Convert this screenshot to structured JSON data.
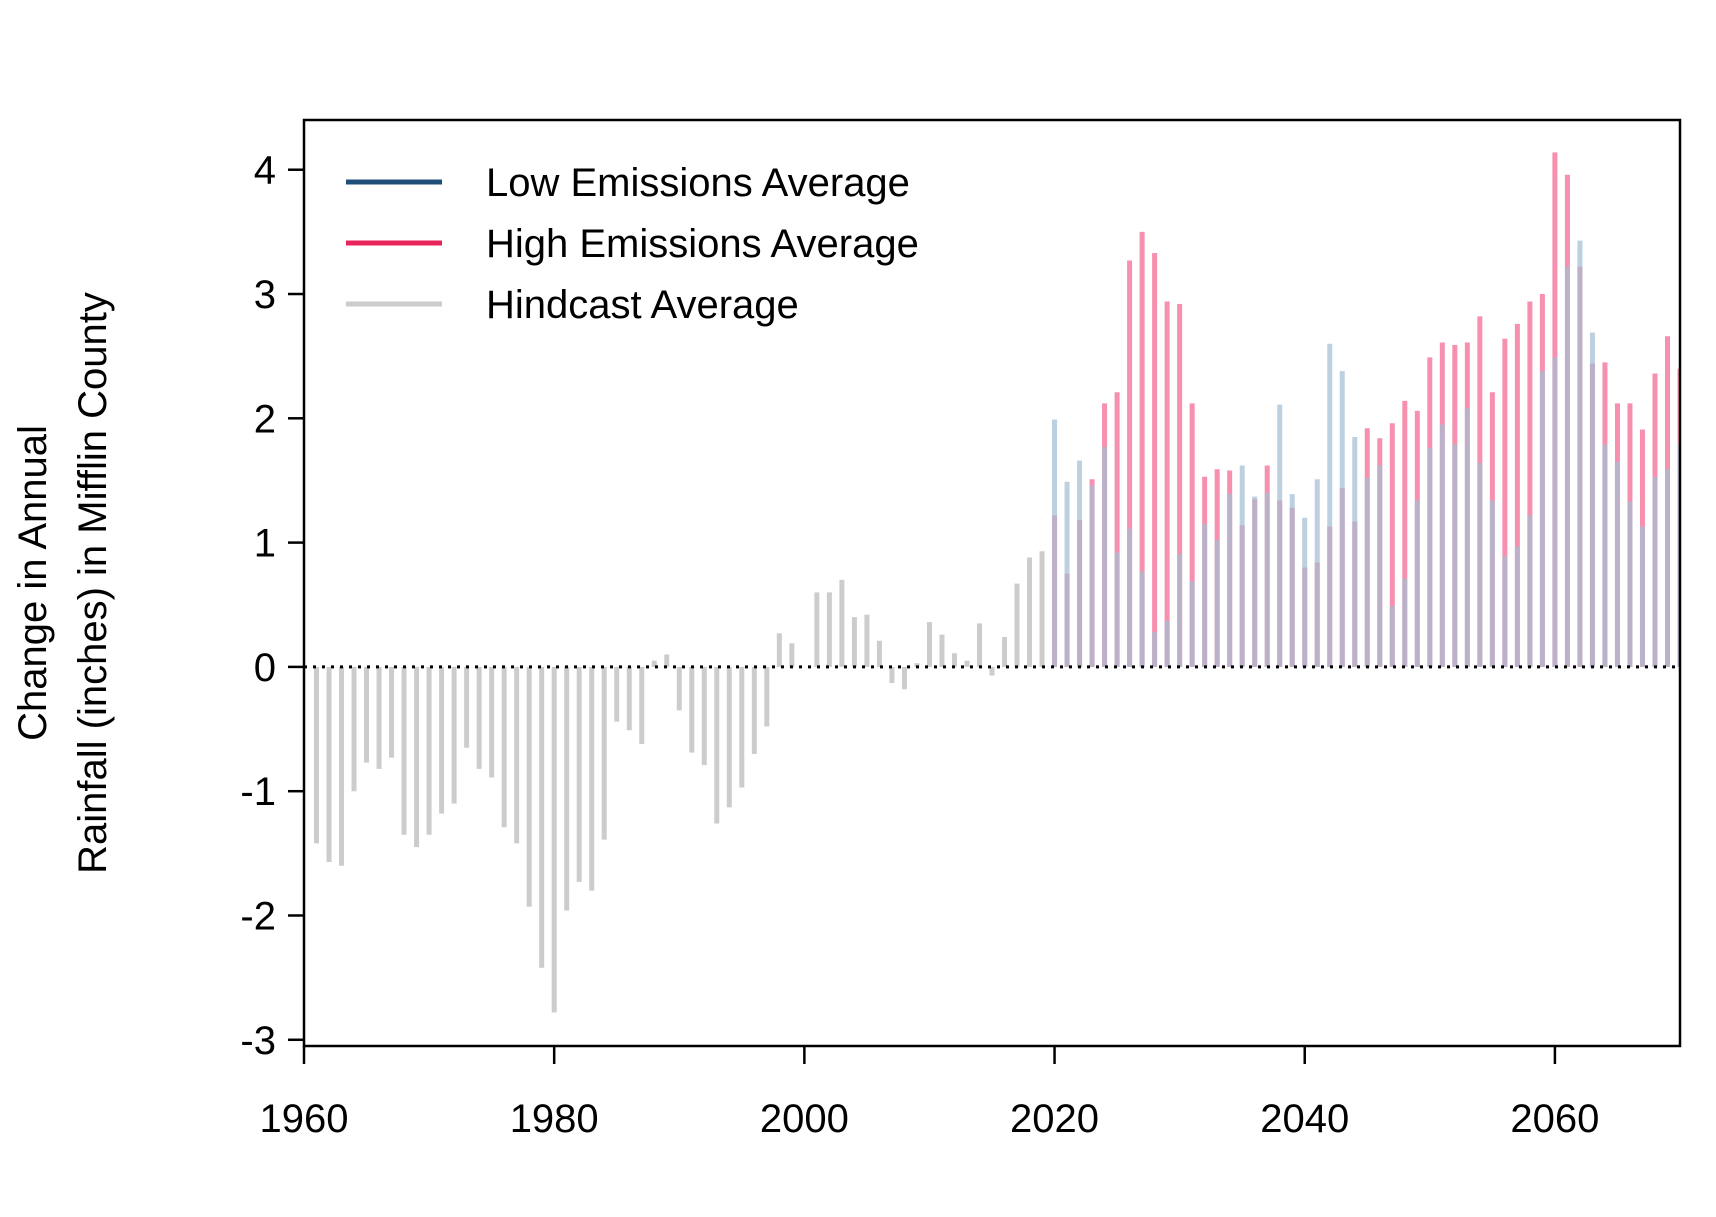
{
  "chart_data": {
    "type": "bar",
    "title": "",
    "xlabel": "",
    "ylabel_lines": [
      "Change in Annual",
      "Rainfall (inches) in Mifflin County"
    ],
    "xlim": [
      1960,
      2070
    ],
    "ylim": [
      -3.05,
      4.4
    ],
    "x_ticks": [
      1960,
      1980,
      2000,
      2020,
      2040,
      2060
    ],
    "y_ticks": [
      -3,
      -2,
      -1,
      0,
      1,
      2,
      3,
      4
    ],
    "reference_line": {
      "y": 0,
      "style": "dotted"
    },
    "legend": {
      "position": "top-left",
      "entries": [
        {
          "label": "Low Emissions Average",
          "color": "#1F4E79"
        },
        {
          "label": "High Emissions Average",
          "color": "#E8245A"
        },
        {
          "label": "Hindcast Average",
          "color": "#CCCCCC"
        }
      ]
    },
    "series": [
      {
        "name": "Hindcast Average",
        "color": "#CCCCCC",
        "x": [
          1961,
          1962,
          1963,
          1964,
          1965,
          1966,
          1967,
          1968,
          1969,
          1970,
          1971,
          1972,
          1973,
          1974,
          1975,
          1976,
          1977,
          1978,
          1979,
          1980,
          1981,
          1982,
          1983,
          1984,
          1985,
          1986,
          1987,
          1988,
          1989,
          1990,
          1991,
          1992,
          1993,
          1994,
          1995,
          1996,
          1997,
          1998,
          1999,
          2000,
          2001,
          2002,
          2003,
          2004,
          2005,
          2006,
          2007,
          2008,
          2009,
          2010,
          2011,
          2012,
          2013,
          2014,
          2015,
          2016,
          2017,
          2018,
          2019
        ],
        "values": [
          -1.42,
          -1.57,
          -1.6,
          -1.0,
          -0.77,
          -0.82,
          -0.73,
          -1.35,
          -1.45,
          -1.35,
          -1.18,
          -1.1,
          -0.65,
          -0.82,
          -0.89,
          -1.29,
          -1.42,
          -1.93,
          -2.42,
          -2.78,
          -1.96,
          -1.73,
          -1.8,
          -1.39,
          -0.44,
          -0.51,
          -0.62,
          0.05,
          0.1,
          -0.35,
          -0.69,
          -0.79,
          -1.26,
          -1.13,
          -0.97,
          -0.7,
          -0.48,
          0.27,
          0.19,
          0.0,
          0.6,
          0.6,
          0.7,
          0.4,
          0.42,
          0.21,
          -0.13,
          -0.18,
          0.03,
          0.36,
          0.26,
          0.11,
          0.05,
          0.35,
          -0.07,
          0.24,
          0.67,
          0.88,
          0.93
        ]
      },
      {
        "name": "High Emissions Average",
        "color": "#F78FAE",
        "x": [
          2020,
          2021,
          2022,
          2023,
          2024,
          2025,
          2026,
          2027,
          2028,
          2029,
          2030,
          2031,
          2032,
          2033,
          2034,
          2035,
          2036,
          2037,
          2038,
          2039,
          2040,
          2041,
          2042,
          2043,
          2044,
          2045,
          2046,
          2047,
          2048,
          2049,
          2050,
          2051,
          2052,
          2053,
          2054,
          2055,
          2056,
          2057,
          2058,
          2059,
          2060,
          2061,
          2062,
          2063,
          2064,
          2065,
          2066,
          2067,
          2068,
          2069,
          2070
        ],
        "values": [
          1.22,
          0.75,
          1.18,
          1.51,
          2.12,
          2.21,
          3.27,
          3.5,
          3.33,
          2.94,
          2.92,
          2.12,
          1.53,
          1.59,
          1.58,
          1.14,
          1.35,
          1.62,
          1.34,
          1.28,
          0.8,
          0.84,
          1.13,
          1.44,
          1.17,
          1.92,
          1.84,
          1.96,
          2.14,
          2.06,
          2.49,
          2.61,
          2.59,
          2.61,
          2.82,
          2.21,
          2.64,
          2.76,
          2.94,
          3.0,
          4.14,
          3.96,
          3.22,
          2.44,
          2.45,
          2.12,
          2.12,
          1.91,
          2.36,
          2.66,
          2.4
        ]
      },
      {
        "name": "Low Emissions Average",
        "color": "#A4BED4",
        "x": [
          2020,
          2021,
          2022,
          2023,
          2024,
          2025,
          2026,
          2027,
          2028,
          2029,
          2030,
          2031,
          2032,
          2033,
          2034,
          2035,
          2036,
          2037,
          2038,
          2039,
          2040,
          2041,
          2042,
          2043,
          2044,
          2045,
          2046,
          2047,
          2048,
          2049,
          2050,
          2051,
          2052,
          2053,
          2054,
          2055,
          2056,
          2057,
          2058,
          2059,
          2060,
          2061,
          2062,
          2063,
          2064,
          2065,
          2066,
          2067,
          2068,
          2069,
          2070
        ],
        "values": [
          1.99,
          1.49,
          1.66,
          1.46,
          1.77,
          0.92,
          1.11,
          0.77,
          0.28,
          0.37,
          0.91,
          0.69,
          1.15,
          1.02,
          1.39,
          1.62,
          1.37,
          1.4,
          2.11,
          1.39,
          1.2,
          1.51,
          2.6,
          2.38,
          1.85,
          1.52,
          1.62,
          0.49,
          0.71,
          1.34,
          1.76,
          1.95,
          1.79,
          2.08,
          1.64,
          1.34,
          0.89,
          0.97,
          1.22,
          2.38,
          2.49,
          3.22,
          3.43,
          2.69,
          1.79,
          1.65,
          1.33,
          1.13,
          1.53,
          1.59,
          1.8
        ]
      }
    ]
  }
}
